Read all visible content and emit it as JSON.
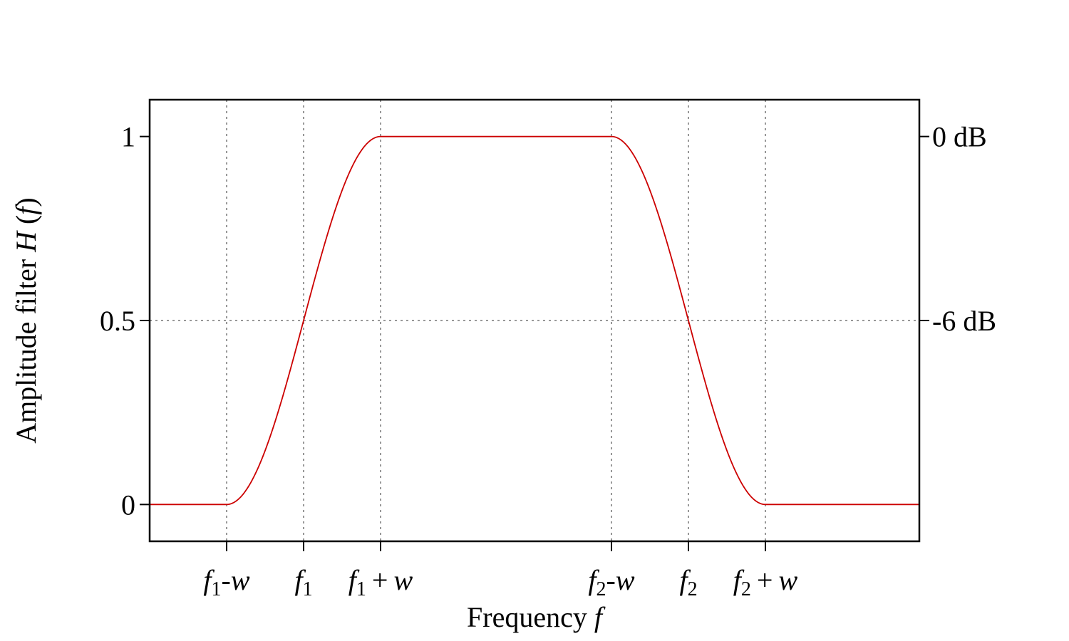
{
  "chart_data": {
    "type": "line",
    "xlabel": "Frequency",
    "xlabel_symbol": "f",
    "ylabel": "Amplitude filter",
    "ylabel_symbol": "H",
    "ylabel_arg": "f",
    "x_ticks": [
      {
        "pos": 1,
        "sym": "f",
        "sub": "1",
        "op": "-",
        "var": "w"
      },
      {
        "pos": 2,
        "sym": "f",
        "sub": "1",
        "op": "",
        "var": ""
      },
      {
        "pos": 3,
        "sym": "f",
        "sub": "1",
        "op": "+",
        "var": "w"
      },
      {
        "pos": 6,
        "sym": "f",
        "sub": "2",
        "op": "-",
        "var": "w"
      },
      {
        "pos": 7,
        "sym": "f",
        "sub": "2",
        "op": "",
        "var": ""
      },
      {
        "pos": 8,
        "sym": "f",
        "sub": "2",
        "op": "+",
        "var": "w"
      }
    ],
    "y_ticks": [
      {
        "value": 0,
        "label": "0"
      },
      {
        "value": 0.5,
        "label": "0.5"
      },
      {
        "value": 1,
        "label": "1"
      }
    ],
    "y2_ticks": [
      {
        "value": 1,
        "label": "0 dB"
      },
      {
        "value": 0.5,
        "label": "-6 dB"
      }
    ],
    "xlim": [
      0,
      10
    ],
    "ylim": [
      -0.1,
      1.1
    ],
    "grid": true,
    "series": [
      {
        "color": "#cc0000",
        "transition_shape": "raised-cosine",
        "breakpoints": {
          "f1_minus_w": 1,
          "f1": 2,
          "f1_plus_w": 3,
          "f2_minus_w": 6,
          "f2": 7,
          "f2_plus_w": 8
        }
      }
    ]
  }
}
